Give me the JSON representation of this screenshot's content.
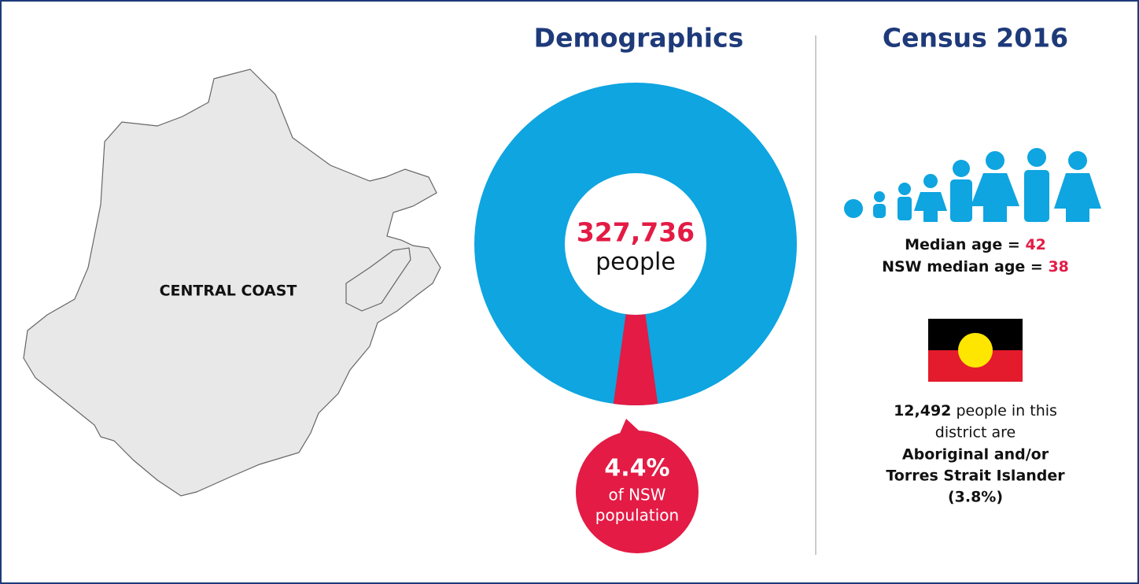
{
  "map": {
    "label": "CENTRAL COAST"
  },
  "demographics": {
    "title": "Demographics",
    "population": "327,736",
    "population_unit": "people",
    "share": {
      "value": 4.4,
      "label": "4.4%"
    },
    "share_caption": [
      "of NSW",
      "population"
    ]
  },
  "census": {
    "title": "Census 2016",
    "median": [
      {
        "label": "Median age = ",
        "value": "42"
      },
      {
        "label": "NSW median age = ",
        "value": "38"
      }
    ],
    "aboriginal": {
      "count": "12,492",
      "lines": [
        " people in this",
        "district are"
      ],
      "bold_lines": [
        "Aboriginal and/or",
        "Torres Strait Islander",
        "(3.8%)"
      ]
    }
  }
}
